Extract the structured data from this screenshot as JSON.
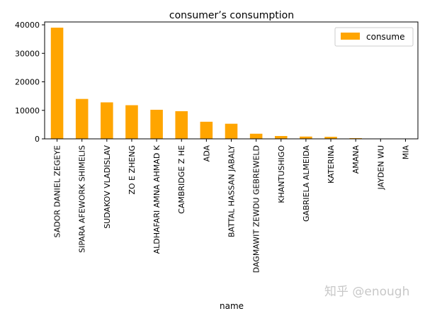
{
  "chart_data": {
    "type": "bar",
    "title": "consumer’s consumption",
    "xlabel": "name",
    "ylabel": "",
    "categories": [
      "SADOR DANIEL ZEGEYE",
      "SIPARA AFEWORK SHIMELIS",
      "SUDAKOV VLADISLAV",
      "ZO E ZHENG",
      "ALDHAFARI AMNA AHMAD K",
      "CAMBRIDGE Z HE",
      "ADA",
      "BATTAL HASSAN JABALY",
      "DAGMAWIT ZEWDU GEBREWELD",
      "KHANTUSHIGO",
      "GABRIELA ALMEIDA",
      "KATERINA",
      "AMANA",
      "JAYDEN WU",
      "MIA"
    ],
    "series": [
      {
        "name": "consume",
        "color": "#ffa500",
        "values": [
          39000,
          14000,
          12800,
          11800,
          10200,
          9700,
          6000,
          5300,
          1800,
          1000,
          800,
          700,
          250,
          80,
          40
        ]
      }
    ],
    "ylim": [
      0,
      41000
    ],
    "yticks": [
      0,
      10000,
      20000,
      30000,
      40000
    ],
    "grid": false,
    "legend": "top-right"
  },
  "watermark": "知乎 @enough"
}
